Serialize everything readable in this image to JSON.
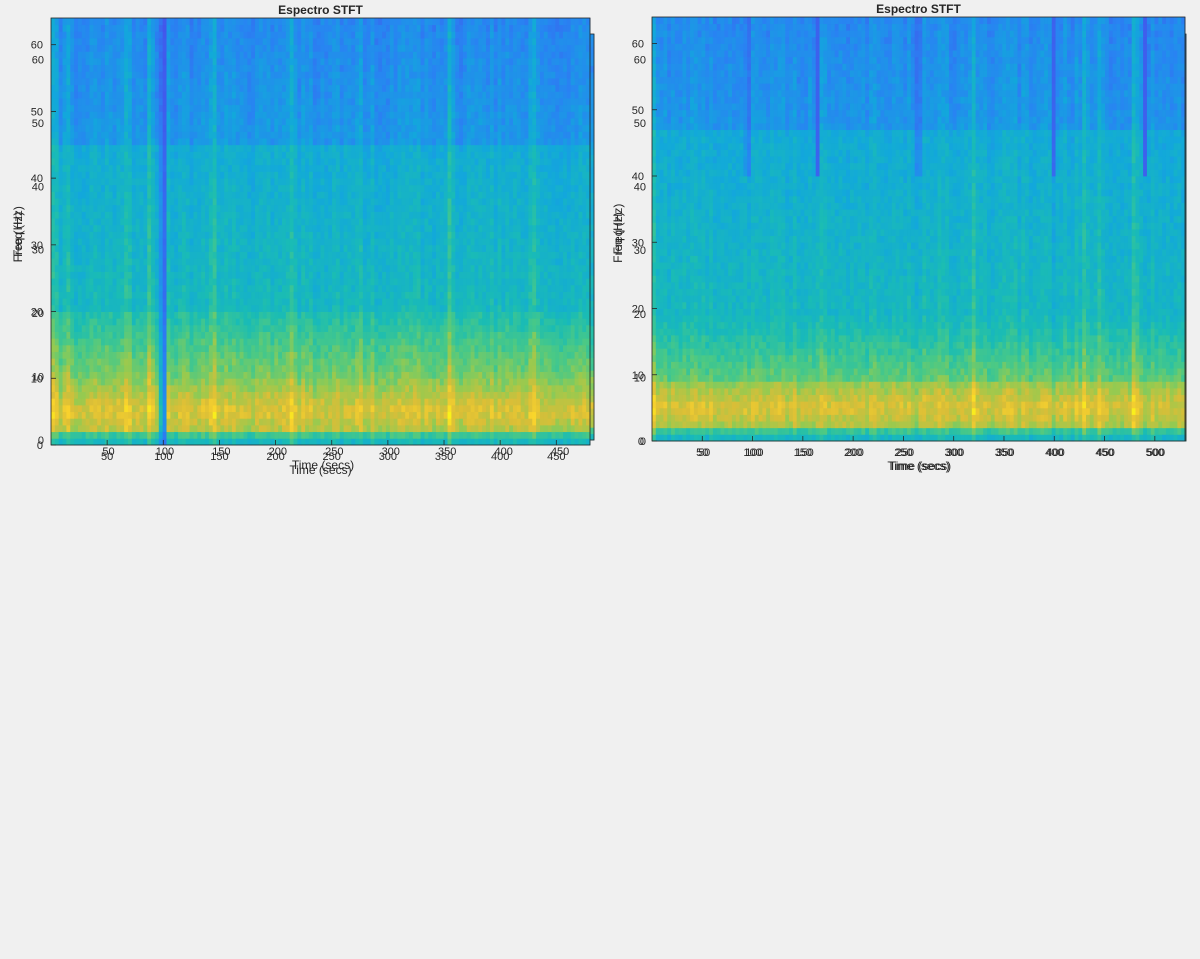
{
  "figure": {
    "background": "#f0f0f0"
  },
  "charts": [
    {
      "title": "Espectro STFT",
      "xlabel": "Time (secs)",
      "ylabel": "Freq (Hz)"
    },
    {
      "title": "Espectro STFT",
      "xlabel": "Time (secs)",
      "ylabel": "Freq (Hz)"
    },
    {
      "title": "Espectro STFT",
      "xlabel": "Time (secs)",
      "ylabel": "Freq (Hz)"
    },
    {
      "title": "Espectro STFT",
      "xlabel": "Time (secs)",
      "ylabel": "Freq (Hz)"
    }
  ],
  "chart_data": [
    {
      "type": "heatmap",
      "title": "Espectro STFT",
      "xlabel": "Time (secs)",
      "ylabel": "Freq (Hz)",
      "xlim": [
        0,
        480
      ],
      "ylim": [
        0,
        64
      ],
      "xticks": [
        50,
        100,
        150,
        200,
        250,
        300,
        350,
        400,
        450
      ],
      "yticks": [
        0,
        10,
        20,
        30,
        40,
        50,
        60
      ],
      "colormap": "parula",
      "grid": false,
      "high_energy_band_hz": [
        2,
        10
      ],
      "peak_frequency_hz": 5,
      "bright_columns_secs": [
        18,
        68,
        88,
        98,
        107,
        145,
        188,
        215,
        230,
        258,
        275,
        430
      ],
      "dark_columns_secs": [],
      "top_band_low_energy_above_hz": 47
    },
    {
      "type": "heatmap",
      "title": "Espectro STFT",
      "xlabel": "Time (secs)",
      "ylabel": "Freq (Hz)",
      "xlim": [
        0,
        530
      ],
      "ylim": [
        0,
        64
      ],
      "xticks": [
        50,
        100,
        150,
        200,
        250,
        300,
        350,
        400,
        450,
        500
      ],
      "yticks": [
        0,
        10,
        20,
        30,
        40,
        50,
        60
      ],
      "colormap": "parula",
      "grid": false,
      "high_energy_band_hz": [
        2,
        11
      ],
      "peak_frequency_hz": 5,
      "bright_columns_secs": [
        3,
        25,
        60,
        140,
        165,
        320,
        370,
        440,
        475
      ],
      "dark_columns_secs": [],
      "top_band_low_energy_above_hz": 47
    },
    {
      "type": "heatmap",
      "title": "Espectro STFT",
      "xlabel": "Time (secs)",
      "ylabel": "Freq (Hz)",
      "xlim": [
        0,
        480
      ],
      "ylim": [
        0,
        64
      ],
      "xticks": [
        50,
        100,
        150,
        200,
        250,
        300,
        350,
        400,
        450
      ],
      "yticks": [
        0,
        10,
        20,
        30,
        40,
        50,
        60
      ],
      "colormap": "parula",
      "grid": false,
      "high_energy_band_hz": [
        2,
        12
      ],
      "peak_frequency_hz": 5,
      "bright_columns_secs": [
        3,
        15,
        68,
        88,
        145,
        215,
        275,
        355,
        430
      ],
      "dark_columns_secs": [
        100
      ],
      "top_band_low_energy_above_hz": 45
    },
    {
      "type": "heatmap",
      "title": "Espectro STFT",
      "xlabel": "Time (secs)",
      "ylabel": "Freq (Hz)",
      "xlim": [
        0,
        530
      ],
      "ylim": [
        0,
        64
      ],
      "xticks": [
        50,
        100,
        150,
        200,
        250,
        300,
        350,
        400,
        450,
        500
      ],
      "yticks": [
        0,
        10,
        20,
        30,
        40,
        50,
        60
      ],
      "colormap": "parula",
      "grid": false,
      "high_energy_band_hz": [
        2,
        9
      ],
      "peak_frequency_hz": 5,
      "bright_columns_secs": [
        3,
        165,
        320,
        430,
        445,
        480
      ],
      "dark_columns_secs": [
        95,
        165,
        265,
        400,
        490
      ],
      "top_band_low_energy_above_hz": 47
    }
  ]
}
